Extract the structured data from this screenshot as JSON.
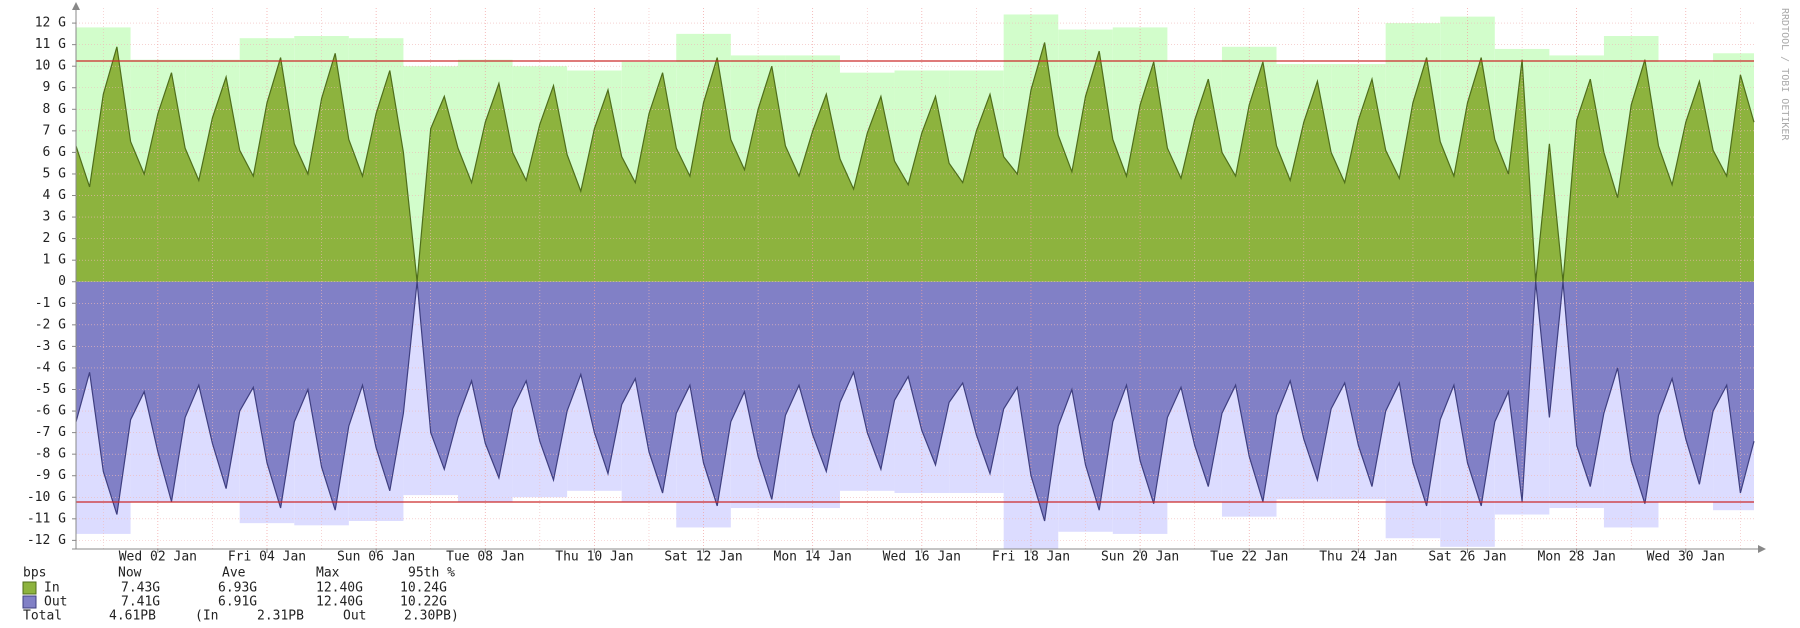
{
  "chart_data": {
    "type": "area",
    "xlim": [
      -12,
      726
    ],
    "ylim": [
      -12.4,
      12.7
    ],
    "xticks": [
      {
        "value": 24,
        "label": "Wed 02 Jan"
      },
      {
        "value": 72,
        "label": "Fri 04 Jan"
      },
      {
        "value": 120,
        "label": "Sun 06 Jan"
      },
      {
        "value": 168,
        "label": "Tue 08 Jan"
      },
      {
        "value": 216,
        "label": "Thu 10 Jan"
      },
      {
        "value": 264,
        "label": "Sat 12 Jan"
      },
      {
        "value": 312,
        "label": "Mon 14 Jan"
      },
      {
        "value": 360,
        "label": "Wed 16 Jan"
      },
      {
        "value": 408,
        "label": "Fri 18 Jan"
      },
      {
        "value": 456,
        "label": "Sun 20 Jan"
      },
      {
        "value": 504,
        "label": "Tue 22 Jan"
      },
      {
        "value": 552,
        "label": "Thu 24 Jan"
      },
      {
        "value": 600,
        "label": "Sat 26 Jan"
      },
      {
        "value": 648,
        "label": "Mon 28 Jan"
      },
      {
        "value": 696,
        "label": "Wed 30 Jan"
      }
    ],
    "xminorticks": [
      0,
      48,
      96,
      144,
      192,
      240,
      288,
      336,
      384,
      432,
      480,
      528,
      576,
      624,
      672,
      720
    ],
    "yticks": [
      {
        "value": 12,
        "label": "12 G"
      },
      {
        "value": 11,
        "label": "11 G"
      },
      {
        "value": 10,
        "label": "10 G"
      },
      {
        "value": 9,
        "label": "9 G"
      },
      {
        "value": 8,
        "label": "8 G"
      },
      {
        "value": 7,
        "label": "7 G"
      },
      {
        "value": 6,
        "label": "6 G"
      },
      {
        "value": 5,
        "label": "5 G"
      },
      {
        "value": 4,
        "label": "4 G"
      },
      {
        "value": 3,
        "label": "3 G"
      },
      {
        "value": 2,
        "label": "2 G"
      },
      {
        "value": 1,
        "label": "1 G"
      },
      0,
      {
        "value": -1,
        "label": "-1 G"
      },
      {
        "value": -2,
        "label": "-2 G"
      },
      {
        "value": -3,
        "label": "-3 G"
      },
      {
        "value": -4,
        "label": "-4 G"
      },
      {
        "value": -5,
        "label": "-5 G"
      },
      {
        "value": -6,
        "label": "-6 G"
      },
      {
        "value": -7,
        "label": "-7 G"
      },
      {
        "value": -8,
        "label": "-8 G"
      },
      {
        "value": -9,
        "label": "-9 G"
      },
      {
        "value": -10,
        "label": "-10 G"
      },
      {
        "value": -11,
        "label": "-11 G"
      },
      {
        "value": -12,
        "label": "-12 G"
      }
    ],
    "grid": true,
    "x": [
      -12,
      -6,
      0,
      6,
      12,
      18,
      24,
      30,
      36,
      42,
      48,
      54,
      60,
      66,
      72,
      78,
      84,
      90,
      96,
      102,
      108,
      114,
      120,
      126,
      132,
      138,
      144,
      150,
      156,
      162,
      168,
      174,
      180,
      186,
      192,
      198,
      204,
      210,
      216,
      222,
      228,
      234,
      240,
      246,
      252,
      258,
      264,
      270,
      276,
      282,
      288,
      294,
      300,
      306,
      312,
      318,
      324,
      330,
      336,
      342,
      348,
      354,
      360,
      366,
      372,
      378,
      384,
      390,
      396,
      402,
      408,
      414,
      420,
      426,
      432,
      438,
      444,
      450,
      456,
      462,
      468,
      474,
      480,
      486,
      492,
      498,
      504,
      510,
      516,
      522,
      528,
      534,
      540,
      546,
      552,
      558,
      564,
      570,
      576,
      582,
      588,
      594,
      600,
      606,
      612,
      618,
      624,
      630,
      636,
      642,
      648,
      654,
      660,
      666,
      672,
      678,
      684,
      690,
      696,
      702,
      708,
      714,
      720,
      726
    ],
    "max_x": [
      -12,
      12,
      36,
      60,
      84,
      108,
      132,
      156,
      180,
      204,
      228,
      252,
      276,
      300,
      324,
      348,
      372,
      396,
      420,
      444,
      468,
      492,
      516,
      540,
      564,
      588,
      612,
      636,
      660,
      684,
      708,
      726
    ],
    "legend_header": [
      "bps",
      "Now",
      "Ave",
      "Max",
      "95th %"
    ],
    "total": [
      "Total",
      "4.61PB",
      "(In",
      "2.31PB",
      "Out",
      "2.30PB)"
    ],
    "watermark": "RRDTOOL / TOBI OETIKER",
    "series": [
      {
        "name": "In",
        "color": "#8db33e",
        "line_color": "#4f6e1b",
        "max_color": "#d2fdcb",
        "values": [
          6.3,
          4.4,
          8.7,
          10.9,
          6.5,
          5.0,
          7.8,
          9.7,
          6.2,
          4.7,
          7.6,
          9.5,
          6.1,
          4.9,
          8.3,
          10.4,
          6.4,
          5.0,
          8.5,
          10.6,
          6.6,
          4.9,
          7.8,
          9.8,
          6.0,
          0,
          7.1,
          8.6,
          6.2,
          4.6,
          7.4,
          9.2,
          6.0,
          4.7,
          7.3,
          9.1,
          5.9,
          4.2,
          7.1,
          8.9,
          5.8,
          4.6,
          7.8,
          9.7,
          6.2,
          4.9,
          8.3,
          10.4,
          6.6,
          5.2,
          8.0,
          10.0,
          6.3,
          4.9,
          7.0,
          8.7,
          5.7,
          4.3,
          6.9,
          8.6,
          5.6,
          4.5,
          6.9,
          8.6,
          5.5,
          4.6,
          7.0,
          8.7,
          5.8,
          5.0,
          8.9,
          11.1,
          6.8,
          5.1,
          8.6,
          10.7,
          6.6,
          4.9,
          8.2,
          10.2,
          6.2,
          4.8,
          7.5,
          9.4,
          6.0,
          4.9,
          8.2,
          10.2,
          6.3,
          4.7,
          7.4,
          9.3,
          6.0,
          4.6,
          7.5,
          9.4,
          6.1,
          4.8,
          8.3,
          10.4,
          6.5,
          4.9,
          8.3,
          10.4,
          6.6,
          5.0,
          10.3,
          0,
          6.4,
          0,
          7.5,
          9.4,
          6.0,
          3.9,
          8.2,
          10.3,
          6.3,
          4.5,
          7.4,
          9.3,
          6.1,
          4.9,
          9.6,
          7.4
        ],
        "daily_max": [
          11.8,
          10.3,
          10.3,
          11.3,
          11.4,
          11.3,
          10.0,
          10.3,
          10.0,
          9.8,
          10.2,
          11.5,
          10.5,
          10.5,
          9.7,
          9.8,
          9.8,
          12.4,
          11.7,
          11.8,
          10.2,
          10.9,
          10.1,
          10.1,
          12.0,
          12.3,
          10.8,
          10.5,
          11.4,
          10.2,
          10.6
        ],
        "stats": [
          7.43,
          6.93,
          12.4,
          10.24
        ],
        "stat_labels": [
          "7.43G",
          "6.93G",
          "12.40G",
          "10.24G"
        ]
      },
      {
        "name": "Out",
        "color": "#8180c6",
        "line_color": "#3f3f80",
        "max_color": "#dcdcff",
        "stats_negated": true,
        "values": [
          -6.5,
          -4.2,
          -8.8,
          -10.8,
          -6.4,
          -5.1,
          -7.9,
          -10.2,
          -6.3,
          -4.8,
          -7.5,
          -9.6,
          -6.0,
          -4.9,
          -8.4,
          -10.5,
          -6.5,
          -5.0,
          -8.6,
          -10.6,
          -6.7,
          -4.8,
          -7.7,
          -9.7,
          -6.1,
          0,
          -7.0,
          -8.7,
          -6.3,
          -4.6,
          -7.5,
          -9.1,
          -5.9,
          -4.6,
          -7.4,
          -9.2,
          -6.0,
          -4.3,
          -7.0,
          -8.9,
          -5.7,
          -4.5,
          -7.9,
          -9.8,
          -6.1,
          -4.8,
          -8.4,
          -10.4,
          -6.5,
          -5.1,
          -8.1,
          -10.1,
          -6.2,
          -4.8,
          -7.1,
          -8.8,
          -5.6,
          -4.2,
          -7.0,
          -8.7,
          -5.5,
          -4.4,
          -6.9,
          -8.5,
          -5.6,
          -4.7,
          -7.1,
          -8.9,
          -5.9,
          -4.9,
          -9.0,
          -11.1,
          -6.7,
          -5.0,
          -8.5,
          -10.6,
          -6.5,
          -4.8,
          -8.3,
          -10.3,
          -6.3,
          -4.9,
          -7.6,
          -9.5,
          -6.1,
          -4.8,
          -8.1,
          -10.2,
          -6.2,
          -4.6,
          -7.3,
          -9.2,
          -5.9,
          -4.7,
          -7.6,
          -9.5,
          -6.0,
          -4.7,
          -8.4,
          -10.4,
          -6.4,
          -4.8,
          -8.4,
          -10.4,
          -6.5,
          -5.1,
          -10.2,
          0,
          -6.3,
          0,
          -7.6,
          -9.5,
          -6.1,
          -4.0,
          -8.3,
          -10.3,
          -6.2,
          -4.5,
          -7.3,
          -9.4,
          -6.0,
          -4.8,
          -9.8,
          -7.4
        ],
        "daily_max": [
          -11.7,
          -10.2,
          -10.2,
          -11.2,
          -11.3,
          -11.1,
          -9.9,
          -10.2,
          -10.0,
          -9.7,
          -10.2,
          -11.4,
          -10.5,
          -10.5,
          -9.7,
          -9.8,
          -9.8,
          -12.4,
          -11.6,
          -11.7,
          -10.2,
          -10.9,
          -10.1,
          -10.1,
          -11.9,
          -12.3,
          -10.8,
          -10.5,
          -11.4,
          -10.2,
          -10.6
        ],
        "stats": [
          7.41,
          6.91,
          12.4,
          10.22
        ],
        "stat_labels": [
          "7.41G",
          "6.91G",
          "12.40G",
          "10.22G"
        ]
      }
    ]
  }
}
